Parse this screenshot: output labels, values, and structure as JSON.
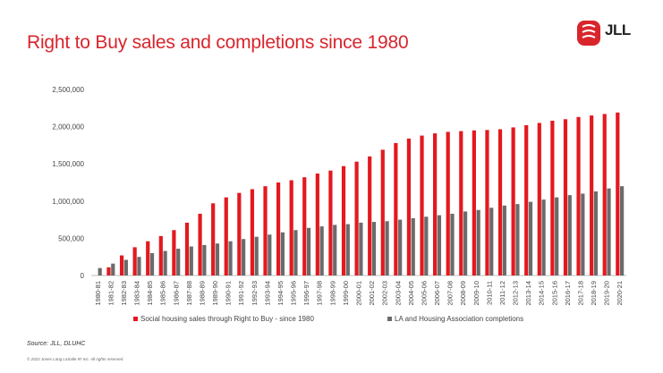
{
  "title": "Right to Buy sales and completions since 1980",
  "logo": {
    "text": "JLL",
    "icon": "jll-logo-icon"
  },
  "colors": {
    "accent": "#d8252c",
    "series_red": "#e3191f",
    "series_grey": "#6b6b6b"
  },
  "source": "Source: JLL, DLUHC",
  "copyright": "© 2022 Jones Lang LaSalle IP, Inc. All rights reserved.",
  "chart_data": {
    "type": "bar",
    "xlabel": "",
    "ylabel": "",
    "ylim": [
      0,
      2500000
    ],
    "yticks": [
      0,
      500000,
      1000000,
      1500000,
      2000000,
      2500000
    ],
    "ytick_labels": [
      "0",
      "500,000",
      "1,000,000",
      "1,500,000",
      "2,000,000",
      "2,500,000"
    ],
    "grid": false,
    "legend_position": "bottom",
    "categories": [
      "1980-81",
      "1981-82",
      "1982-83",
      "1983-84",
      "1984-85",
      "1985-86",
      "1986-87",
      "1987-88",
      "1988-89",
      "1989-90",
      "1990-91",
      "1991-92",
      "1992-93",
      "1993-94",
      "1994-95",
      "1995-96",
      "1996-97",
      "1997-98",
      "1998-99",
      "1999-00",
      "2000-01",
      "2001-02",
      "2002-03",
      "2003-04",
      "2004-05",
      "2005-06",
      "2006-07",
      "2007-08",
      "2008-09",
      "2009-10",
      "2010-11",
      "2011-12",
      "2012-13",
      "2013-14",
      "2014-15",
      "2015-16",
      "2016-17",
      "2017-18",
      "2018-19",
      "2019-20",
      "2020-21"
    ],
    "series": [
      {
        "name": "Social housing sales through Right to Buy - since 1980",
        "color": "#e3191f",
        "values": [
          0,
          110000,
          270000,
          380000,
          460000,
          530000,
          610000,
          710000,
          830000,
          970000,
          1050000,
          1110000,
          1160000,
          1200000,
          1250000,
          1280000,
          1320000,
          1370000,
          1410000,
          1470000,
          1530000,
          1600000,
          1690000,
          1780000,
          1840000,
          1880000,
          1910000,
          1930000,
          1940000,
          1950000,
          1955000,
          1965000,
          1990000,
          2020000,
          2050000,
          2080000,
          2100000,
          2130000,
          2150000,
          2170000,
          2190000
        ]
      },
      {
        "name": "LA and Housing Association completions",
        "color": "#6b6b6b",
        "values": [
          100000,
          160000,
          210000,
          250000,
          300000,
          330000,
          360000,
          390000,
          410000,
          430000,
          460000,
          490000,
          520000,
          550000,
          580000,
          610000,
          640000,
          660000,
          680000,
          690000,
          710000,
          720000,
          730000,
          750000,
          770000,
          790000,
          810000,
          830000,
          860000,
          880000,
          910000,
          940000,
          960000,
          990000,
          1020000,
          1050000,
          1080000,
          1100000,
          1130000,
          1170000,
          1200000
        ]
      }
    ]
  }
}
